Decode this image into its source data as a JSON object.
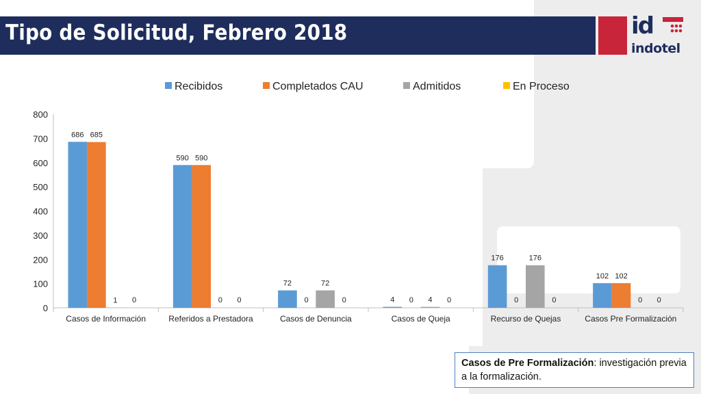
{
  "header": {
    "title": "Tipo de Solicitud, Febrero 2018",
    "logo_top": "id",
    "logo_bottom": "indotel"
  },
  "note": {
    "term": "Casos de Pre Formalización",
    "definition": ": investigación previa a la formalización."
  },
  "colors": {
    "title_bar": "#1e2d5c",
    "logo_red": "#c8253a",
    "recibidos": "#5b9bd5",
    "completados": "#ed7d31",
    "admitidos": "#a5a5a5",
    "en_proceso": "#ffc000"
  },
  "chart_data": {
    "type": "bar",
    "title": "",
    "xlabel": "",
    "ylabel": "",
    "ylim": [
      0,
      800
    ],
    "yticks": [
      0,
      100,
      200,
      300,
      400,
      500,
      600,
      700,
      800
    ],
    "grid": false,
    "legend_position": "top",
    "categories": [
      "Casos de Información",
      "Referidos a Prestadora",
      "Casos de Denuncia",
      "Casos de Queja",
      "Recurso de Quejas",
      "Casos Pre Formalización"
    ],
    "series": [
      {
        "name": "Recibidos",
        "color": "#5b9bd5",
        "values": [
          686,
          590,
          72,
          4,
          176,
          102
        ],
        "labels": [
          "686",
          "590",
          "72",
          "4",
          "176",
          "102"
        ]
      },
      {
        "name": "Completados CAU",
        "color": "#ed7d31",
        "values": [
          685,
          590,
          0,
          0,
          0,
          102
        ],
        "labels": [
          "685",
          "590",
          "0",
          "0",
          "0",
          "102"
        ]
      },
      {
        "name": "Admitidos",
        "color": "#a5a5a5",
        "values": [
          1,
          0,
          72,
          4,
          176,
          0
        ],
        "labels": [
          "1",
          "0",
          "72",
          "4",
          "176",
          "0"
        ]
      },
      {
        "name": "En Proceso",
        "color": "#ffc000",
        "values": [
          0,
          0,
          0,
          0,
          0,
          0
        ],
        "labels": [
          "0",
          "0",
          "0",
          "0",
          "0",
          "0"
        ]
      }
    ]
  }
}
